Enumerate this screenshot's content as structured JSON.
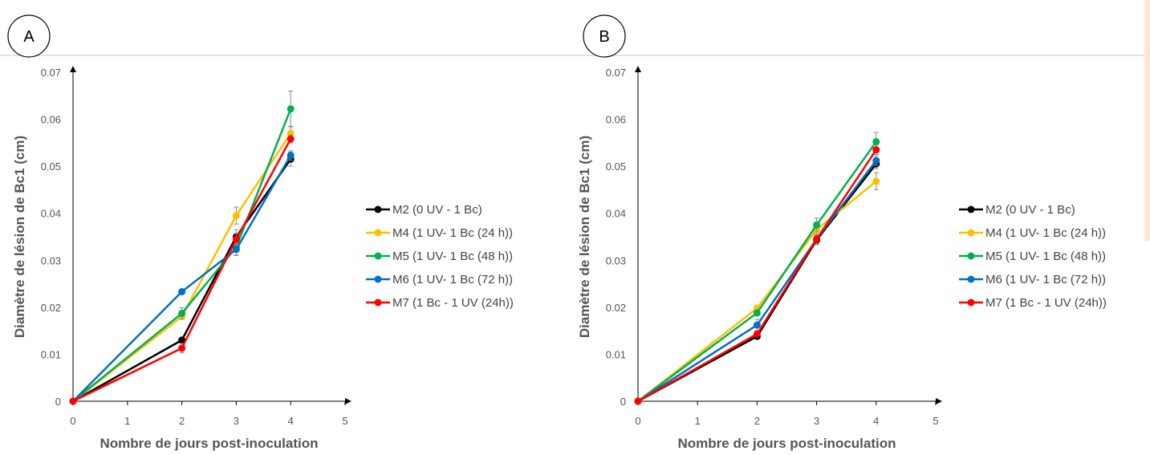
{
  "chart_data": [
    {
      "type": "line",
      "panel_label": "A",
      "xlabel": "Nombre de jours post-inoculation",
      "ylabel": "Diamètre de lésion de Bc1 (cm)",
      "xlim": [
        0,
        5
      ],
      "ylim": [
        0,
        0.07
      ],
      "x_ticks": [
        "0",
        "1",
        "2",
        "3",
        "4",
        "5"
      ],
      "y_ticks": [
        "0",
        "0.01",
        "0.02",
        "0.03",
        "0.04",
        "0.05",
        "0.06",
        "0.07"
      ],
      "x": [
        0,
        2,
        3,
        4
      ],
      "legend_position": "right",
      "series": [
        {
          "name": "M2 (0 UV - 1 Bc)",
          "color": "#000000",
          "values": [
            0,
            0.013,
            0.035,
            0.0515
          ],
          "errors": [
            0,
            0.0006,
            0.0015,
            0.0015
          ]
        },
        {
          "name": "M4 (1 UV- 1 Bc (24 h))",
          "color": "#FFC000",
          "values": [
            0,
            0.018,
            0.0395,
            0.057
          ],
          "errors": [
            0,
            0.0005,
            0.0018,
            0.0015
          ]
        },
        {
          "name": "M5 (1 UV- 1 Bc (48 h))",
          "color": "#00B050",
          "values": [
            0,
            0.0187,
            0.0328,
            0.0622
          ],
          "errors": [
            0,
            0.0012,
            0.0018,
            0.0038
          ]
        },
        {
          "name": "M6 (1 UV- 1 Bc (72 h))",
          "color": "#0070C0",
          "values": [
            0,
            0.0233,
            0.0323,
            0.0523
          ],
          "errors": [
            0,
            0.0005,
            0.0012,
            0.001
          ]
        },
        {
          "name": "M7 (1 Bc - 1 UV (24h))",
          "color": "#FF0000",
          "values": [
            0,
            0.0113,
            0.0345,
            0.0558
          ],
          "errors": [
            0,
            0.001,
            0.0012,
            0.0008
          ]
        }
      ]
    },
    {
      "type": "line",
      "panel_label": "B",
      "xlabel": "Nombre de jours post-inoculation",
      "ylabel": "Diamètre de lésion de Bc1 (cm)",
      "xlim": [
        0,
        5
      ],
      "ylim": [
        0,
        0.07
      ],
      "x_ticks": [
        "0",
        "1",
        "2",
        "3",
        "4",
        "5"
      ],
      "y_ticks": [
        "0",
        "0.01",
        "0.02",
        "0.03",
        "0.04",
        "0.05",
        "0.06",
        "0.07"
      ],
      "x": [
        0,
        2,
        3,
        4
      ],
      "legend_position": "right",
      "series": [
        {
          "name": "M2 (0 UV - 1 Bc)",
          "color": "#000000",
          "values": [
            0,
            0.0138,
            0.0343,
            0.0505
          ],
          "errors": [
            0,
            0.0004,
            0.001,
            0.001
          ]
        },
        {
          "name": "M4 (1 UV- 1 Bc (24 h))",
          "color": "#FFC000",
          "values": [
            0,
            0.0198,
            0.0365,
            0.0468
          ],
          "errors": [
            0,
            0.0006,
            0.0012,
            0.0018
          ]
        },
        {
          "name": "M5 (1 UV- 1 Bc (48 h))",
          "color": "#00B050",
          "values": [
            0,
            0.0188,
            0.0375,
            0.0552
          ],
          "errors": [
            0,
            0.0006,
            0.0015,
            0.002
          ]
        },
        {
          "name": "M6 (1 UV- 1 Bc (72 h))",
          "color": "#0070C0",
          "values": [
            0,
            0.0162,
            0.0345,
            0.0512
          ],
          "errors": [
            0,
            0.0012,
            0.001,
            0.001
          ]
        },
        {
          "name": "M7 (1 Bc - 1 UV (24h))",
          "color": "#FF0000",
          "values": [
            0,
            0.0143,
            0.0345,
            0.0535
          ],
          "errors": [
            0,
            0.0005,
            0.001,
            0.001
          ]
        }
      ]
    }
  ]
}
